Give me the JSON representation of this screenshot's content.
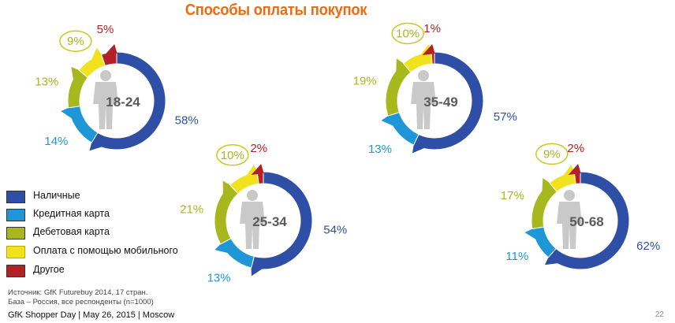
{
  "chart_data": {
    "type": "pie",
    "title": "Способы оплаты покупок",
    "legend": {
      "placement": "bottom-left",
      "entries": [
        "Наличные",
        "Кредитная карта",
        "Дебетовая карта",
        "Оплата с помощью мобильного",
        "Другое"
      ]
    },
    "colors": [
      "#2e4fa5",
      "#1f97d6",
      "#a6b81e",
      "#f2e21e",
      "#b32025"
    ],
    "charts": [
      {
        "group": "18-24",
        "values": [
          58,
          14,
          13,
          9,
          5
        ],
        "labels": [
          "58%",
          "14%",
          "13%",
          "9%",
          "5%"
        ]
      },
      {
        "group": "25-34",
        "values": [
          54,
          13,
          21,
          10,
          2
        ],
        "labels": [
          "54%",
          "13%",
          "21%",
          "10%",
          "2%"
        ]
      },
      {
        "group": "35-49",
        "values": [
          57,
          13,
          19,
          10,
          1
        ],
        "labels": [
          "57%",
          "13%",
          "19%",
          "10%",
          "1%"
        ]
      },
      {
        "group": "50-68",
        "values": [
          62,
          11,
          17,
          9,
          2
        ],
        "labels": [
          "62%",
          "11%",
          "17%",
          "9%",
          "2%"
        ]
      }
    ]
  },
  "source": {
    "line1": "Источник: GfK Futurebuy 2014, 17 стран.",
    "line2": "База – Россия, все респонденты (n=1000)"
  },
  "footer": "GfK Shopper Day | May 26, 2015 | Moscow",
  "page_number": "22"
}
